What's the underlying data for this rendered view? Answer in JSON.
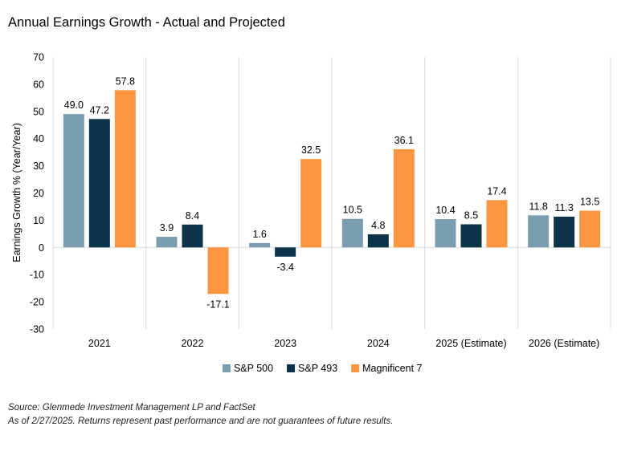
{
  "chart_data": {
    "type": "bar",
    "title": "Annual Earnings Growth - Actual and Projected",
    "ylabel": "Earnings Growth % (Year/Year)",
    "xlabel": "",
    "ylim": [
      -30,
      70
    ],
    "yticks": [
      -30,
      -20,
      -10,
      0,
      10,
      20,
      30,
      40,
      50,
      60,
      70
    ],
    "categories": [
      "2021",
      "2022",
      "2023",
      "2024",
      "2025 (Estimate)",
      "2026 (Estimate)"
    ],
    "series": [
      {
        "name": "S&P 500",
        "color": "#7A9DAF",
        "values": [
          49.0,
          3.9,
          1.6,
          10.5,
          10.4,
          11.8
        ]
      },
      {
        "name": "S&P 493",
        "color": "#0D3349",
        "values": [
          47.2,
          8.4,
          -3.4,
          4.8,
          8.5,
          11.3
        ]
      },
      {
        "name": "Magnificent 7",
        "color": "#FA9642",
        "values": [
          57.8,
          -17.1,
          32.5,
          36.1,
          17.4,
          13.5
        ]
      }
    ],
    "legend_position": "bottom",
    "grid": false
  },
  "footnotes": {
    "source": "Source: Glenmede Investment Management LP and FactSet",
    "disclaimer": "As of 2/27/2025. Returns represent past performance and are not guarantees of future results."
  }
}
